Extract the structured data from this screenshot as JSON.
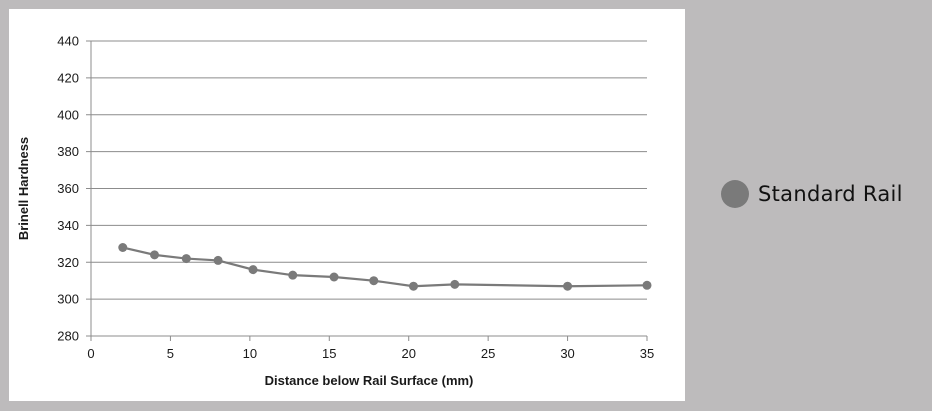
{
  "chart_data": {
    "type": "line",
    "xlabel": "Distance below Rail Surface (mm)",
    "ylabel": "Brinell Hardness",
    "xlim": [
      0,
      35
    ],
    "ylim": [
      280,
      440
    ],
    "xticks": [
      0,
      5,
      10,
      15,
      20,
      25,
      30,
      35
    ],
    "yticks": [
      280,
      300,
      320,
      340,
      360,
      380,
      400,
      420,
      440
    ],
    "grid": "horizontal",
    "legend_position": "right",
    "series": [
      {
        "name": "Standard Rail",
        "color": "#7a7a7a",
        "marker": "circle",
        "x": [
          2,
          4,
          6,
          8,
          10.2,
          12.7,
          15.3,
          17.8,
          20.3,
          22.9,
          30,
          35
        ],
        "y": [
          328,
          324,
          322,
          321,
          316,
          313,
          312,
          310,
          307,
          308,
          307,
          307.5
        ]
      }
    ]
  }
}
